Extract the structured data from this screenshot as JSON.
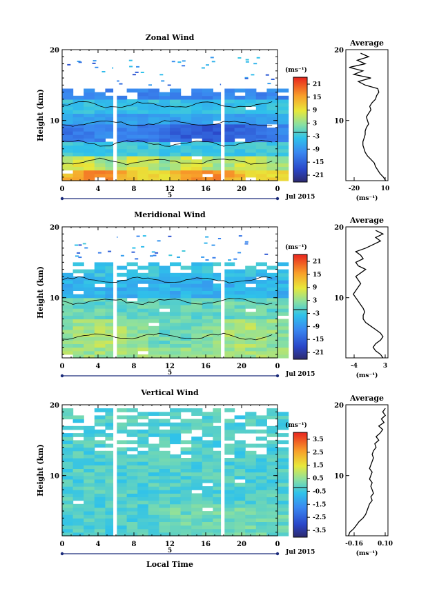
{
  "figure": {
    "date_label": "Jul 2015",
    "xlabel": "Local Time"
  },
  "chart_data": [
    {
      "type": "heatmap",
      "title": "Zonal Wind",
      "ylabel": "Height (km)",
      "xlabel": "",
      "x_ticks": [
        "0",
        "4",
        "8",
        "12",
        "16",
        "20",
        "0"
      ],
      "x_range": [
        0,
        24
      ],
      "y_range": [
        1.5,
        20
      ],
      "y_ticks": [
        10,
        20
      ],
      "day_marker": "5",
      "data_gaps_hours": [
        [
          5.7,
          6.1
        ],
        [
          17.7,
          18.1
        ]
      ],
      "valid_range_km": [
        1.5,
        14.5
      ],
      "colorbar": {
        "unit": "(ms⁻¹)",
        "ticks": [
          "21",
          "15",
          "9",
          "3",
          "-3",
          "-9",
          "-15",
          "-21"
        ],
        "range": [
          -24,
          24
        ]
      },
      "profile": {
        "title": "Average",
        "unit": "(ms⁻¹)",
        "x_ticks": [
          "-20",
          "10"
        ],
        "x_range": [
          -25,
          12
        ],
        "y_ticks": [
          10,
          20
        ],
        "heights": [
          1.5,
          2,
          2.5,
          3,
          3.5,
          4,
          4.5,
          5,
          5.5,
          6,
          6.5,
          7,
          7.5,
          8,
          8.5,
          9,
          9.5,
          10,
          10.5,
          11,
          11.5,
          12,
          12.5,
          13,
          13.5,
          14,
          14.5,
          15,
          15.5,
          16,
          16.5,
          17,
          17.5,
          18,
          18.5,
          19,
          19.5
        ],
        "values": [
          10,
          8,
          5,
          3,
          1,
          0,
          -3,
          -6,
          -8,
          -9,
          -10,
          -10,
          -9,
          -8,
          -8,
          -7,
          -5,
          -6,
          -7,
          -5,
          -3,
          -4,
          -2,
          1,
          2,
          4,
          3,
          -8,
          -14,
          -3,
          -18,
          -10,
          -22,
          -8,
          -15,
          -5,
          -12
        ]
      }
    },
    {
      "type": "heatmap",
      "title": "Meridional Wind",
      "ylabel": "Height (km)",
      "xlabel": "",
      "x_ticks": [
        "0",
        "4",
        "8",
        "12",
        "16",
        "20",
        "0"
      ],
      "x_range": [
        0,
        24
      ],
      "y_range": [
        1.5,
        20
      ],
      "y_ticks": [
        10,
        20
      ],
      "day_marker": "5",
      "data_gaps_hours": [
        [
          5.7,
          6.1
        ],
        [
          17.7,
          18.1
        ]
      ],
      "valid_range_km": [
        1.5,
        15
      ],
      "colorbar": {
        "unit": "(ms⁻¹)",
        "ticks": [
          "21",
          "15",
          "9",
          "3",
          "-3",
          "-9",
          "-15",
          "-21"
        ],
        "range": [
          -24,
          24
        ]
      },
      "profile": {
        "title": "Average",
        "unit": "(ms⁻¹)",
        "x_ticks": [
          "-4",
          "3"
        ],
        "x_range": [
          -5,
          3.5
        ],
        "y_ticks": [
          10,
          20
        ],
        "heights": [
          1.5,
          2,
          2.5,
          3,
          3.5,
          4,
          4.5,
          5,
          5.5,
          6,
          6.5,
          7,
          7.5,
          8,
          8.5,
          9,
          9.5,
          10,
          10.5,
          11,
          11.5,
          12,
          12.5,
          13,
          13.5,
          14,
          14.5,
          15,
          15.5,
          16,
          16.5,
          17,
          17.5,
          18,
          18.5,
          19,
          19.5
        ],
        "values": [
          2.5,
          2,
          1,
          0.5,
          1,
          2,
          2.5,
          2,
          1,
          0,
          -1,
          -1.5,
          -1.5,
          -1.2,
          -1.5,
          -2,
          -2.5,
          -3,
          -3.5,
          -3,
          -2.5,
          -2,
          -2.5,
          -3,
          -2,
          -1,
          -2.5,
          -3,
          -1.5,
          -2,
          -3,
          -1,
          0.5,
          2,
          1,
          2.5,
          1
        ]
      }
    },
    {
      "type": "heatmap",
      "title": "Vertical Wind",
      "ylabel": "Height (km)",
      "xlabel": "Local Time",
      "x_ticks": [
        "0",
        "4",
        "8",
        "12",
        "16",
        "20",
        "0"
      ],
      "x_range": [
        0,
        24
      ],
      "y_range": [
        1.5,
        20
      ],
      "y_ticks": [
        10,
        20
      ],
      "day_marker": "5",
      "data_gaps_hours": [
        [
          5.7,
          6.1
        ],
        [
          17.7,
          18.1
        ]
      ],
      "valid_range_km": [
        1.5,
        19.5
      ],
      "colorbar": {
        "unit": "(ms⁻¹)",
        "ticks": [
          "3.5",
          "2.5",
          "1.5",
          "0.5",
          "-0.5",
          "-1.5",
          "-2.5",
          "-3.5"
        ],
        "range": [
          -4,
          4
        ]
      },
      "profile": {
        "title": "Average",
        "unit": "(ms⁻¹)",
        "x_ticks": [
          "-0.16",
          "0.10"
        ],
        "x_range": [
          -0.18,
          0.14
        ],
        "y_ticks": [
          10,
          20
        ],
        "heights": [
          1.5,
          2,
          2.5,
          3,
          3.5,
          4,
          4.5,
          5,
          5.5,
          6,
          6.5,
          7,
          7.5,
          8,
          8.5,
          9,
          9.5,
          10,
          10.5,
          11,
          11.5,
          12,
          12.5,
          13,
          13.5,
          14,
          14.5,
          15,
          15.5,
          16,
          16.5,
          17,
          17.5,
          18,
          18.5,
          19,
          19.5
        ],
        "values": [
          -0.16,
          -0.15,
          -0.12,
          -0.1,
          -0.08,
          -0.05,
          -0.03,
          -0.02,
          -0.01,
          0.0,
          0.02,
          0.01,
          0.03,
          0.02,
          0.01,
          0.02,
          0.0,
          0.01,
          0.02,
          0.0,
          0.01,
          0.02,
          0.03,
          0.02,
          0.03,
          0.05,
          0.04,
          0.07,
          0.05,
          0.08,
          0.1,
          0.07,
          0.11,
          0.09,
          0.12,
          0.1,
          0.12
        ]
      }
    }
  ]
}
